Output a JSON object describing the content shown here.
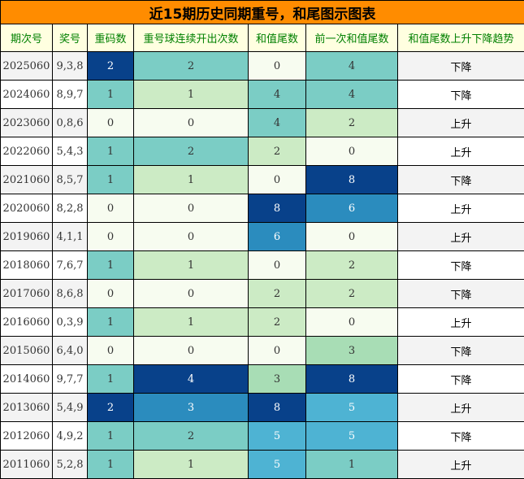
{
  "title": "近15期历史同期重号，和尾图示图表",
  "headers": [
    "期次号",
    "奖号",
    "重码数",
    "重号球连续开出次数",
    "和值尾数",
    "前一次和值尾数",
    "和值尾数上升下降趋势"
  ],
  "heat_colors": {
    "0": "#f7fcf0",
    "1": "#7bcdc5",
    "2": "#ccebc5",
    "3": "#a8ddb5",
    "4": "#7bcdc5",
    "5": "#4eb3d3",
    "6": "#2b8cbe",
    "8": "#08418a"
  },
  "heat_colors_repeat": {
    "0": "#f7fcf0",
    "1": "#7bcdc5",
    "2": "#08418a"
  },
  "heat_colors_streak": {
    "0": "#f7fcf0",
    "1": "#ccebc5",
    "2": "#7bcdc5",
    "3": "#2b8cbe",
    "4": "#08418a"
  },
  "rows": [
    {
      "period": "2025060",
      "numbers": "9,3,8",
      "repeat": "2",
      "streak": "2",
      "sum_tail": "0",
      "prev_tail": "4",
      "trend": "下降"
    },
    {
      "period": "2024060",
      "numbers": "8,9,7",
      "repeat": "1",
      "streak": "1",
      "sum_tail": "4",
      "prev_tail": "4",
      "trend": "下降"
    },
    {
      "period": "2023060",
      "numbers": "0,8,6",
      "repeat": "0",
      "streak": "0",
      "sum_tail": "4",
      "prev_tail": "2",
      "trend": "上升"
    },
    {
      "period": "2022060",
      "numbers": "5,4,3",
      "repeat": "1",
      "streak": "2",
      "sum_tail": "2",
      "prev_tail": "0",
      "trend": "上升"
    },
    {
      "period": "2021060",
      "numbers": "8,5,7",
      "repeat": "1",
      "streak": "1",
      "sum_tail": "0",
      "prev_tail": "8",
      "trend": "下降"
    },
    {
      "period": "2020060",
      "numbers": "8,2,8",
      "repeat": "0",
      "streak": "0",
      "sum_tail": "8",
      "prev_tail": "6",
      "trend": "上升"
    },
    {
      "period": "2019060",
      "numbers": "4,1,1",
      "repeat": "0",
      "streak": "0",
      "sum_tail": "6",
      "prev_tail": "0",
      "trend": "上升"
    },
    {
      "period": "2018060",
      "numbers": "7,6,7",
      "repeat": "1",
      "streak": "1",
      "sum_tail": "0",
      "prev_tail": "2",
      "trend": "下降"
    },
    {
      "period": "2017060",
      "numbers": "8,6,8",
      "repeat": "0",
      "streak": "0",
      "sum_tail": "2",
      "prev_tail": "2",
      "trend": "下降"
    },
    {
      "period": "2016060",
      "numbers": "0,3,9",
      "repeat": "1",
      "streak": "1",
      "sum_tail": "2",
      "prev_tail": "0",
      "trend": "上升"
    },
    {
      "period": "2015060",
      "numbers": "6,4,0",
      "repeat": "0",
      "streak": "0",
      "sum_tail": "0",
      "prev_tail": "3",
      "trend": "下降"
    },
    {
      "period": "2014060",
      "numbers": "9,7,7",
      "repeat": "1",
      "streak": "4",
      "sum_tail": "3",
      "prev_tail": "8",
      "trend": "下降"
    },
    {
      "period": "2013060",
      "numbers": "5,4,9",
      "repeat": "2",
      "streak": "3",
      "sum_tail": "8",
      "prev_tail": "5",
      "trend": "上升"
    },
    {
      "period": "2012060",
      "numbers": "4,9,2",
      "repeat": "1",
      "streak": "2",
      "sum_tail": "5",
      "prev_tail": "5",
      "trend": "下降"
    },
    {
      "period": "2011060",
      "numbers": "5,2,8",
      "repeat": "1",
      "streak": "1",
      "sum_tail": "5",
      "prev_tail": "1",
      "trend": "上升"
    }
  ]
}
